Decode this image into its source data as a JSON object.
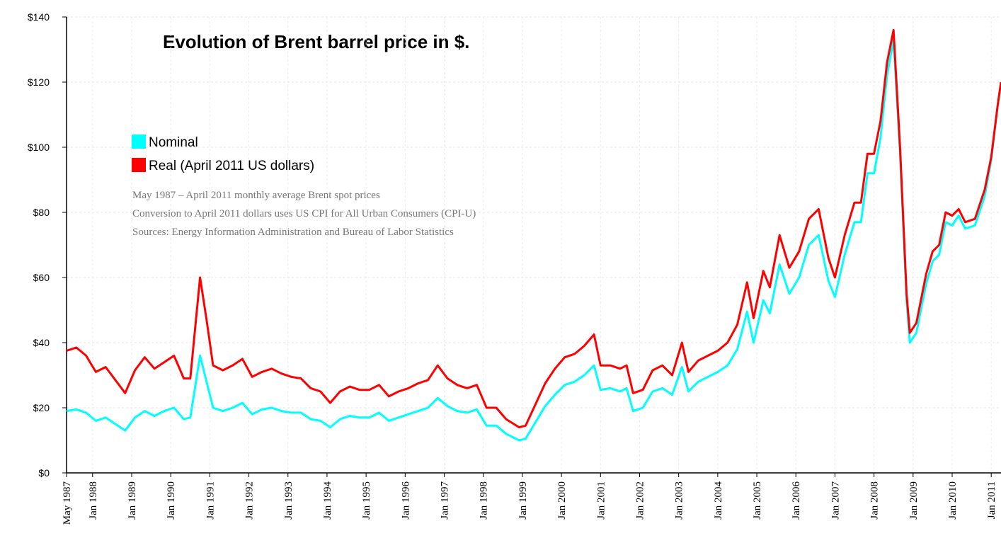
{
  "chart_data": {
    "type": "line",
    "title": "Evolution of Brent barrel price in $.",
    "notes": [
      "May 1987 – April 2011 monthly average Brent spot prices",
      "Conversion to April 2011 dollars uses US CPI for All Urban Consumers (CPI-U)",
      "Sources: Energy Information Administration and Bureau of Labor Statistics"
    ],
    "x": [
      "1987-05",
      "1987-08",
      "1987-11",
      "1988-02",
      "1988-05",
      "1988-08",
      "1988-11",
      "1989-02",
      "1989-05",
      "1989-08",
      "1989-11",
      "1990-02",
      "1990-05",
      "1990-07",
      "1990-10",
      "1990-12",
      "1991-02",
      "1991-05",
      "1991-08",
      "1991-11",
      "1992-02",
      "1992-05",
      "1992-08",
      "1992-11",
      "1993-02",
      "1993-05",
      "1993-08",
      "1993-11",
      "1994-02",
      "1994-05",
      "1994-08",
      "1994-11",
      "1995-02",
      "1995-05",
      "1995-08",
      "1995-11",
      "1996-02",
      "1996-05",
      "1996-08",
      "1996-11",
      "1997-02",
      "1997-05",
      "1997-08",
      "1997-11",
      "1998-02",
      "1998-05",
      "1998-08",
      "1998-12",
      "1999-02",
      "1999-05",
      "1999-08",
      "1999-11",
      "2000-02",
      "2000-05",
      "2000-08",
      "2000-11",
      "2001-01",
      "2001-04",
      "2001-07",
      "2001-09",
      "2001-11",
      "2002-02",
      "2002-05",
      "2002-08",
      "2002-11",
      "2003-02",
      "2003-04",
      "2003-07",
      "2003-10",
      "2004-01",
      "2004-04",
      "2004-07",
      "2004-10",
      "2004-12",
      "2005-03",
      "2005-05",
      "2005-08",
      "2005-11",
      "2006-02",
      "2006-05",
      "2006-08",
      "2006-11",
      "2007-01",
      "2007-04",
      "2007-07",
      "2007-09",
      "2007-11",
      "2008-01",
      "2008-03",
      "2008-05",
      "2008-07",
      "2008-09",
      "2008-11",
      "2008-12",
      "2009-02",
      "2009-05",
      "2009-07",
      "2009-09",
      "2009-11",
      "2010-01",
      "2010-03",
      "2010-05",
      "2010-08",
      "2010-11",
      "2011-01",
      "2011-03",
      "2011-04"
    ],
    "series": [
      {
        "name": "Nominal",
        "color": "#00ffff",
        "values": [
          19,
          19.5,
          18.5,
          16,
          17,
          15,
          13,
          17,
          19,
          17.5,
          19,
          20,
          16.5,
          17,
          36,
          28,
          20,
          19,
          20,
          21.5,
          18,
          19.5,
          20,
          19,
          18.5,
          18.5,
          16.5,
          16,
          14,
          16.5,
          17.5,
          17,
          17,
          18.5,
          16,
          17,
          18,
          19,
          20,
          23,
          20.5,
          19,
          18.5,
          19.5,
          14.5,
          14.5,
          12,
          10,
          10.5,
          15.5,
          20.5,
          24,
          27,
          28,
          30,
          33,
          25.5,
          26,
          25,
          26,
          19,
          20,
          25,
          26,
          24,
          32.5,
          25,
          28,
          29.5,
          31,
          33,
          38,
          49.5,
          40,
          53,
          49,
          64,
          55,
          60,
          70,
          73,
          59,
          54,
          67,
          77,
          77,
          92,
          92,
          103,
          122,
          133,
          98,
          53,
          40,
          43,
          58,
          65,
          67,
          77,
          76,
          79,
          75,
          76,
          85,
          96,
          113,
          120
        ]
      },
      {
        "name": "Real (April 2011 US dollars)",
        "color": "#ff0000",
        "values": [
          37.5,
          38.5,
          36,
          31,
          32.5,
          28.5,
          24.5,
          31.5,
          35.5,
          32,
          34,
          36,
          29,
          29,
          60,
          47,
          33,
          31.5,
          33,
          35,
          29.5,
          31,
          32,
          30.5,
          29.5,
          29,
          26,
          25,
          21.5,
          25,
          26.5,
          25.5,
          25.5,
          27,
          23.5,
          25,
          26,
          27.5,
          28.5,
          33,
          29,
          27,
          26,
          27,
          20,
          20,
          16.5,
          14,
          14.5,
          21,
          27.5,
          32,
          35.5,
          36.5,
          39,
          42.5,
          33,
          33,
          32,
          33,
          24.5,
          25.5,
          31.5,
          33,
          30,
          40,
          31,
          34.5,
          36,
          37.5,
          40,
          45.5,
          58.5,
          47.5,
          62,
          57,
          73,
          63,
          68,
          78,
          81,
          66,
          60,
          73,
          83,
          83,
          98,
          98,
          108,
          126,
          136,
          100,
          55,
          43,
          46,
          61,
          68,
          70,
          80,
          79,
          81,
          77,
          78,
          87,
          97,
          113,
          120
        ]
      }
    ],
    "xlim": [
      "1987-05",
      "2011-04"
    ],
    "xticks": [
      {
        "value": "1987-05",
        "label": "May 1987"
      },
      {
        "value": "1988-01",
        "label": "Jan 1988"
      },
      {
        "value": "1989-01",
        "label": "Jan 1989"
      },
      {
        "value": "1990-01",
        "label": "Jan 1990"
      },
      {
        "value": "1991-01",
        "label": "Jan 1991"
      },
      {
        "value": "1992-01",
        "label": "Jan 1992"
      },
      {
        "value": "1993-01",
        "label": "Jan 1993"
      },
      {
        "value": "1994-01",
        "label": "Jan 1994"
      },
      {
        "value": "1995-01",
        "label": "Jan 1995"
      },
      {
        "value": "1996-01",
        "label": "Jan 1996"
      },
      {
        "value": "1997-01",
        "label": "Jan 1997"
      },
      {
        "value": "1998-01",
        "label": "Jan 1998"
      },
      {
        "value": "1999-01",
        "label": "Jan 1999"
      },
      {
        "value": "2000-01",
        "label": "Jan 2000"
      },
      {
        "value": "2001-01",
        "label": "Jan 2001"
      },
      {
        "value": "2002-01",
        "label": "Jan 2002"
      },
      {
        "value": "2003-01",
        "label": "Jan 2003"
      },
      {
        "value": "2004-01",
        "label": "Jan 2004"
      },
      {
        "value": "2005-01",
        "label": "Jan 2005"
      },
      {
        "value": "2006-01",
        "label": "Jan 2006"
      },
      {
        "value": "2007-01",
        "label": "Jan 2007"
      },
      {
        "value": "2008-01",
        "label": "Jan 2008"
      },
      {
        "value": "2009-01",
        "label": "Jan 2009"
      },
      {
        "value": "2010-01",
        "label": "Jan 2010"
      },
      {
        "value": "2011-01",
        "label": "Jan 2011"
      }
    ],
    "ylim": [
      0,
      140
    ],
    "yticks": [
      {
        "value": 0,
        "label": "$0"
      },
      {
        "value": 20,
        "label": "$20"
      },
      {
        "value": 40,
        "label": "$40"
      },
      {
        "value": 60,
        "label": "$60"
      },
      {
        "value": 80,
        "label": "$80"
      },
      {
        "value": 100,
        "label": "$100"
      },
      {
        "value": 120,
        "label": "$120"
      },
      {
        "value": 140,
        "label": "$140"
      }
    ],
    "grid": true
  }
}
